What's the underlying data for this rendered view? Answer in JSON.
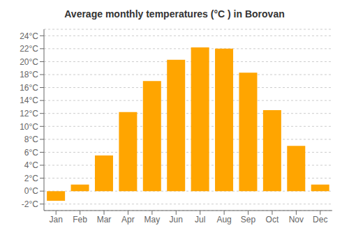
{
  "chart_data": {
    "type": "bar",
    "title": "Average monthly temperatures (°C ) in Borovan",
    "categories": [
      "Jan",
      "Feb",
      "Mar",
      "Apr",
      "May",
      "Jun",
      "Jul",
      "Aug",
      "Sep",
      "Oct",
      "Nov",
      "Dec"
    ],
    "values": [
      -1.5,
      1.0,
      5.5,
      12.2,
      17.0,
      20.3,
      22.2,
      22.0,
      18.3,
      12.5,
      7.0,
      1.0
    ],
    "color": "#FFA500",
    "ylim": [
      -3,
      25
    ],
    "yticks": [
      {
        "value": -2,
        "label": "-2°C"
      },
      {
        "value": 0,
        "label": "0°C"
      },
      {
        "value": 2,
        "label": "2°C"
      },
      {
        "value": 4,
        "label": "4°C"
      },
      {
        "value": 6,
        "label": "6°C"
      },
      {
        "value": 8,
        "label": "8°C"
      },
      {
        "value": 10,
        "label": "10°C"
      },
      {
        "value": 12,
        "label": "12°C"
      },
      {
        "value": 14,
        "label": "14°C"
      },
      {
        "value": 16,
        "label": "16°C"
      },
      {
        "value": 18,
        "label": "18°C"
      },
      {
        "value": 20,
        "label": "20°C"
      },
      {
        "value": 22,
        "label": "22°C"
      },
      {
        "value": 24,
        "label": "24°C"
      }
    ],
    "grid": true
  }
}
